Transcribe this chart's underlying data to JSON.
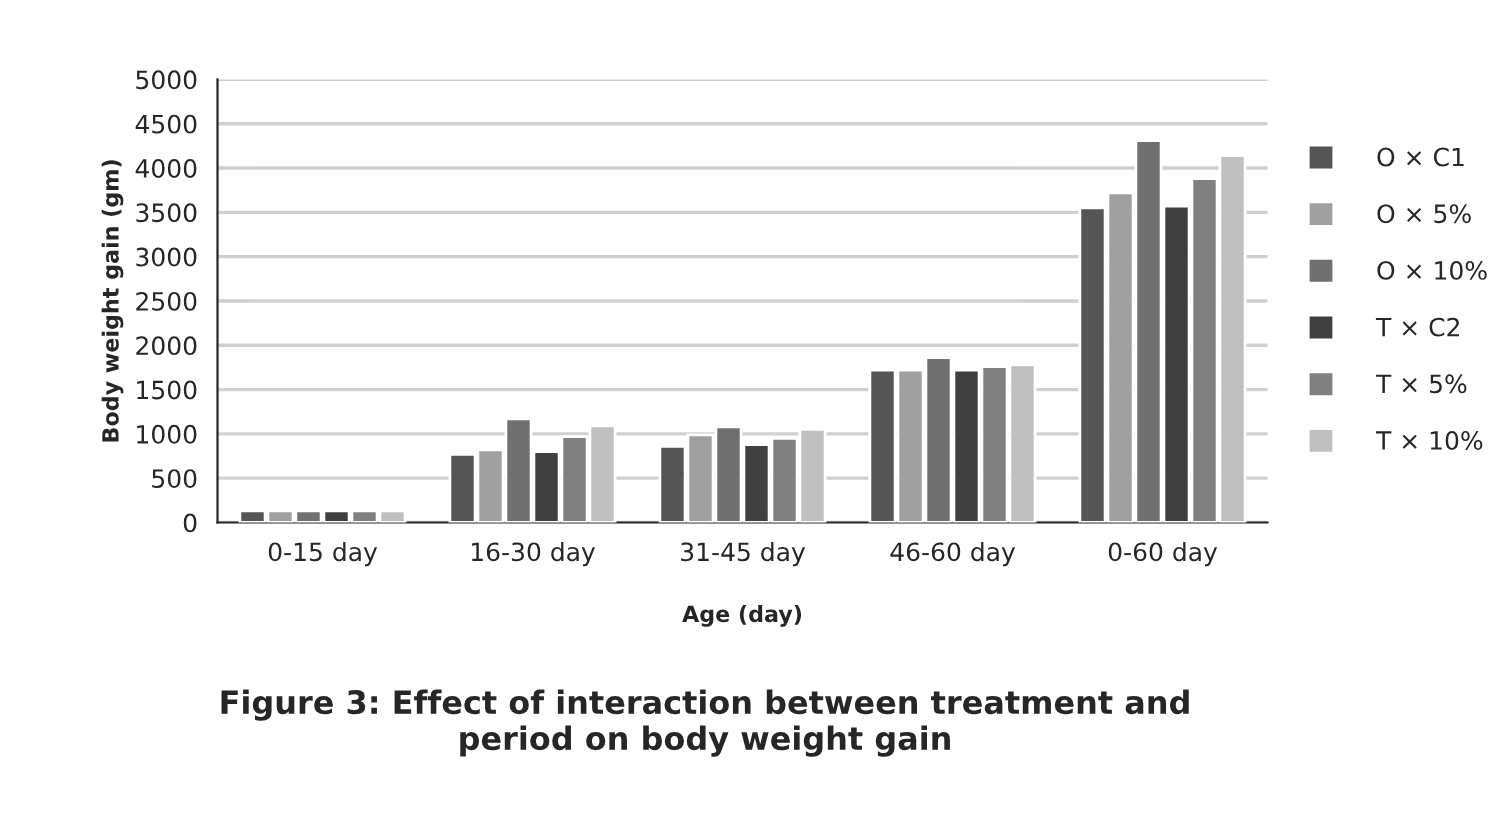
{
  "chart_data": {
    "type": "bar",
    "title": "Figure 3: Effect of interaction between treatment and\nperiod on body weight gain",
    "xlabel": "Age (day)",
    "ylabel": "Body weight gain (gm)",
    "categories": [
      "0-15 day",
      "16-30 day",
      "31-45 day",
      "46-60 day",
      "0-60 day"
    ],
    "series": [
      {
        "name": "O × C1",
        "color": "#555555",
        "values": [
          130,
          770,
          860,
          1720,
          3550
        ]
      },
      {
        "name": "O × 5%",
        "color": "#a0a0a0",
        "values": [
          130,
          820,
          990,
          1720,
          3720
        ]
      },
      {
        "name": "O × 10%",
        "color": "#707070",
        "values": [
          130,
          1170,
          1080,
          1860,
          4310
        ]
      },
      {
        "name": "T × C2",
        "color": "#404040",
        "values": [
          130,
          800,
          880,
          1720,
          3570
        ]
      },
      {
        "name": "T × 5%",
        "color": "#808080",
        "values": [
          130,
          970,
          950,
          1760,
          3880
        ]
      },
      {
        "name": "T × 10%",
        "color": "#c0c0c0",
        "values": [
          130,
          1090,
          1050,
          1780,
          4140
        ]
      }
    ],
    "ylim": [
      0,
      5000
    ],
    "yticks": [
      0,
      500,
      1000,
      1500,
      2000,
      2500,
      3000,
      3500,
      4000,
      4500,
      5000
    ],
    "grid": "y",
    "legend": "right"
  }
}
